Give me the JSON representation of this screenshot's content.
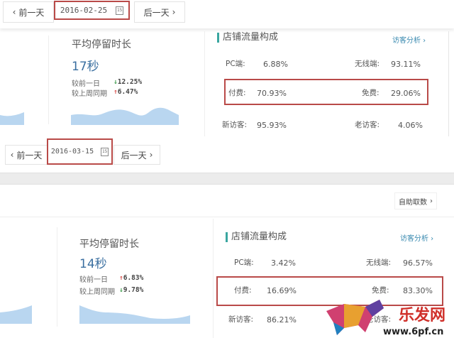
{
  "panels": [
    {
      "prev": "前一天",
      "date": "2016-02-25",
      "cal_day": "15",
      "next": "后一天",
      "metric_title": "平均停留时长",
      "metric_value": "17秒",
      "cmp": [
        {
          "label": "较前一日",
          "dir": "down",
          "value": "12.25%"
        },
        {
          "label": "较上周同期",
          "dir": "up",
          "value": "6.47%"
        }
      ],
      "card_title": "店铺流量构成",
      "card_link": "访客分析",
      "rows": [
        [
          {
            "label": "PC端:",
            "value": "6.88%"
          },
          {
            "label": "无线端:",
            "value": "93.11%"
          }
        ],
        [
          {
            "label": "付费:",
            "value": "70.93%"
          },
          {
            "label": "免费:",
            "value": "29.06%"
          }
        ],
        [
          {
            "label": "新访客:",
            "value": "95.93%"
          },
          {
            "label": "老访客:",
            "value": "4.06%"
          }
        ]
      ]
    },
    {
      "prev": "前一天",
      "date": "2016-03-15",
      "cal_day": "15",
      "next": "后一天",
      "self_fetch": "自助取数",
      "metric_title": "平均停留时长",
      "metric_value": "14秒",
      "cmp": [
        {
          "label": "较前一日",
          "dir": "up",
          "value": "6.83%"
        },
        {
          "label": "较上周同期",
          "dir": "down",
          "value": "9.78%"
        }
      ],
      "card_title": "店铺流量构成",
      "card_link": "访客分析",
      "rows": [
        [
          {
            "label": "PC端:",
            "value": "3.42%"
          },
          {
            "label": "无线端:",
            "value": "96.57%"
          }
        ],
        [
          {
            "label": "付费:",
            "value": "16.69%"
          },
          {
            "label": "免费:",
            "value": "83.30%"
          }
        ],
        [
          {
            "label": "新访客:",
            "value": "86.21%"
          },
          {
            "label": "老访客:",
            "value": ""
          }
        ]
      ]
    }
  ],
  "arrows": {
    "up": "↑",
    "down": "↓"
  },
  "watermark": {
    "name": "乐发网",
    "url": "www.6pf.cn"
  },
  "colors": {
    "highlight": "#b94a48",
    "accent": "#3aa6a0",
    "chart_fill": "#b9d6f0"
  }
}
